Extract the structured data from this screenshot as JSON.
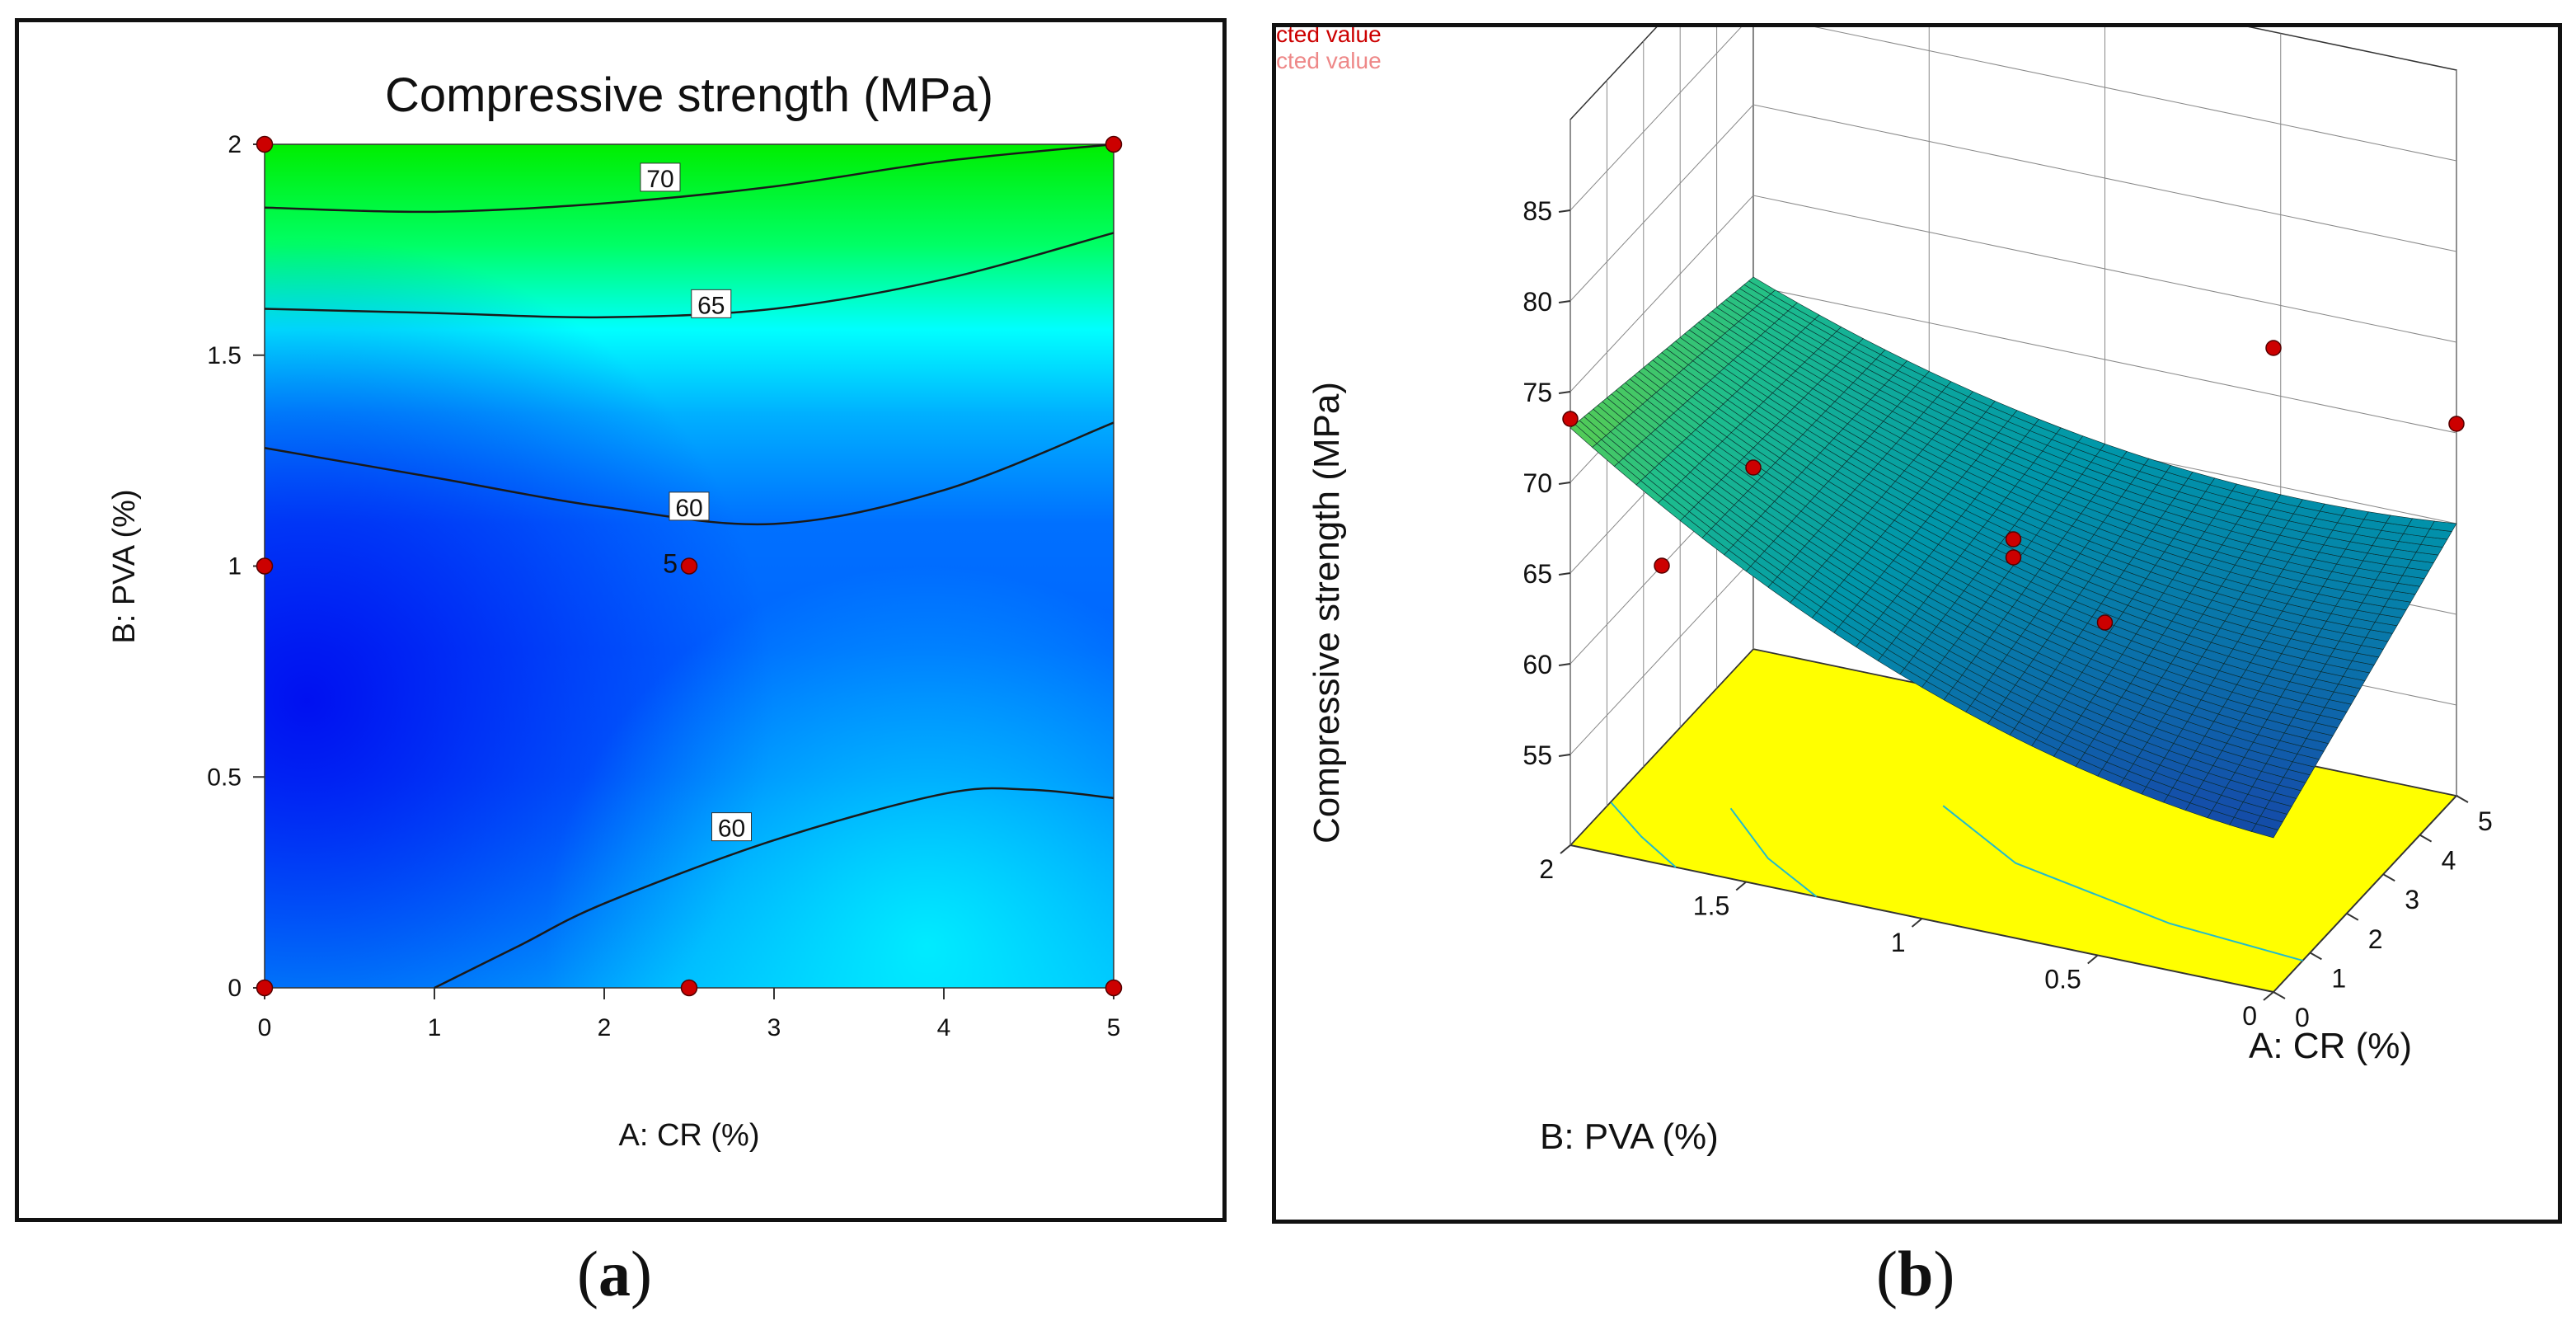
{
  "chart_data": [
    {
      "type": "heatmap",
      "subtype": "contour",
      "title": "Compressive strength (MPa)",
      "xlabel": "A: CR (%)",
      "ylabel": "B: PVA (%)",
      "xlim": [
        0,
        5
      ],
      "ylim": [
        0,
        2
      ],
      "xticks": [
        "0",
        "1",
        "2",
        "3",
        "4",
        "5"
      ],
      "yticks": [
        "0",
        "0.5",
        "1",
        "1.5",
        "2"
      ],
      "colormap": [
        "#0000ee",
        "#0066ff",
        "#00b4ff",
        "#00ffff",
        "#00ff55",
        "#00ee00"
      ],
      "contours": [
        {
          "label": "70",
          "label_at": [
            2.33,
            1.92
          ],
          "points": [
            [
              0,
              1.85
            ],
            [
              1,
              1.84
            ],
            [
              2,
              1.86
            ],
            [
              3,
              1.9
            ],
            [
              4,
              1.96
            ],
            [
              5,
              2.0
            ]
          ]
        },
        {
          "label": "65",
          "label_at": [
            2.63,
            1.62
          ],
          "points": [
            [
              0,
              1.61
            ],
            [
              1,
              1.6
            ],
            [
              2,
              1.59
            ],
            [
              3,
              1.61
            ],
            [
              4,
              1.68
            ],
            [
              5,
              1.79
            ]
          ]
        },
        {
          "label": "60",
          "label_at": [
            2.5,
            1.14
          ],
          "points": [
            [
              0,
              1.28
            ],
            [
              1,
              1.21
            ],
            [
              2,
              1.14
            ],
            [
              3,
              1.1
            ],
            [
              4,
              1.18
            ],
            [
              5,
              1.34
            ]
          ]
        },
        {
          "label": "60",
          "label_at": [
            2.75,
            0.38
          ],
          "points": [
            [
              1.0,
              0.0
            ],
            [
              1.5,
              0.1
            ],
            [
              2.0,
              0.2
            ],
            [
              3,
              0.35
            ],
            [
              4,
              0.46
            ],
            [
              4.5,
              0.47
            ],
            [
              5,
              0.45
            ]
          ]
        }
      ],
      "design_points": [
        {
          "x": 0,
          "y": 0
        },
        {
          "x": 2.5,
          "y": 0
        },
        {
          "x": 5,
          "y": 0
        },
        {
          "x": 0,
          "y": 1
        },
        {
          "x": 2.5,
          "y": 1,
          "label": "5"
        },
        {
          "x": 0,
          "y": 2
        },
        {
          "x": 5,
          "y": 2
        }
      ],
      "point_color": "#cc0000"
    },
    {
      "type": "surface",
      "zlabel": "Compressive strength (MPa)",
      "xlabel": "A: CR (%)",
      "ylabel": "B: PVA (%)",
      "xlim": [
        0,
        5
      ],
      "ylim": [
        0,
        2
      ],
      "zlim": [
        50,
        85
      ],
      "xticks": [
        "0",
        "1",
        "2",
        "3",
        "4",
        "5"
      ],
      "yticks": [
        "0",
        "0.5",
        "1",
        "1.5",
        "2"
      ],
      "zticks": [
        "55",
        "60",
        "65",
        "70",
        "75",
        "80",
        "85"
      ],
      "legend": [
        "cted value",
        "cted value"
      ],
      "legend_colors": [
        "#cc0000",
        "#ee8888"
      ],
      "floor_color": "#ffff00",
      "corner_values": {
        "x0_y0": 58.5,
        "x5_y0": 65.0,
        "x0_y2": 73.0,
        "x5_y2": 70.5
      },
      "design_points": [
        {
          "x": 0,
          "y": 2,
          "z": 73.5
        },
        {
          "x": 0,
          "y": 0,
          "z": 85.5
        },
        {
          "x": 5,
          "y": 0,
          "z": 70.5
        },
        {
          "x": 2.5,
          "y": 1,
          "z": 65.5
        },
        {
          "x": 2.5,
          "y": 1,
          "z": 64.5
        },
        {
          "x": 2.5,
          "y": 2,
          "z": 60.0
        },
        {
          "x": 5,
          "y": 2,
          "z": 60.0
        },
        {
          "x": 5,
          "y": 1,
          "z": 55.5
        }
      ]
    }
  ],
  "captions": {
    "a": "a",
    "b": "b"
  }
}
